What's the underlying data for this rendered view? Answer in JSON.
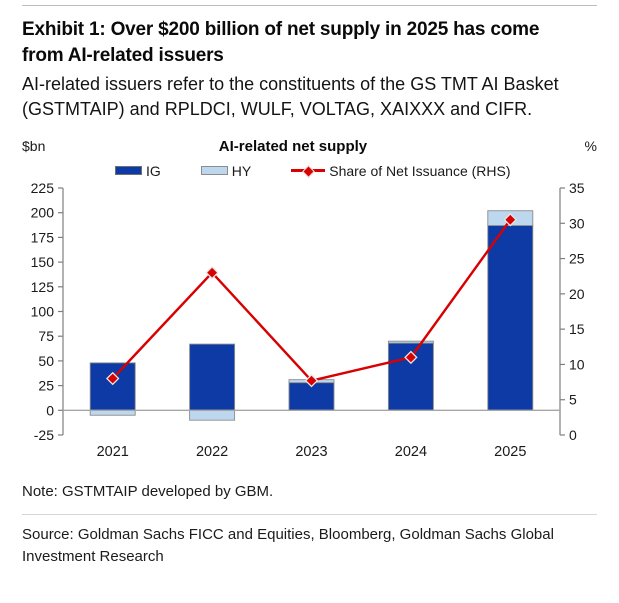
{
  "page": {
    "title": "Exhibit 1: Over $200 billion of net supply in 2025 has come from AI-related issuers",
    "subtitle": "AI-related issuers refer to the constituents of the GS TMT AI Basket (GSTMTAIP) and RPLDCI, WULF, VOLTAG, XAIXXX and CIFR.",
    "note": "Note: GSTMTAIP developed by GBM.",
    "source": "Source: Goldman Sachs FICC and Equities, Bloomberg, Goldman Sachs Global Investment Research"
  },
  "chart_data": {
    "type": "bar",
    "title": "AI-related net supply",
    "left_axis_label": "$bn",
    "right_axis_label": "%",
    "categories": [
      "2021",
      "2022",
      "2023",
      "2024",
      "2025"
    ],
    "series": [
      {
        "name": "IG",
        "type": "bar",
        "axis": "left",
        "color": "#0d3aa4",
        "values": [
          48,
          67,
          28,
          68,
          187
        ]
      },
      {
        "name": "HY",
        "type": "bar",
        "axis": "left",
        "color": "#bdd7ee",
        "values": [
          -5,
          -10,
          3,
          2,
          15
        ]
      },
      {
        "name": "Share of Net Issuance (RHS)",
        "type": "line",
        "axis": "right",
        "color": "#d80000",
        "values": [
          8,
          23,
          7.7,
          11,
          30.5
        ]
      }
    ],
    "left_axis": {
      "min": -25,
      "max": 225,
      "step": 25
    },
    "right_axis": {
      "min": 0,
      "max": 35,
      "step": 5
    },
    "legend_position": "top",
    "grid": false,
    "bars_stacked": true
  },
  "style": {
    "ig_color": "#0d3aa4",
    "hy_color": "#bdd7ee",
    "line_color": "#d80000",
    "bar_border_color": "#8c8c8c",
    "axis_color": "#7f7f7f",
    "zero_line_color": "#a6a6a6",
    "tick_text_color": "#1a1a1a",
    "marker_outline_color": "#e6e6e6"
  }
}
